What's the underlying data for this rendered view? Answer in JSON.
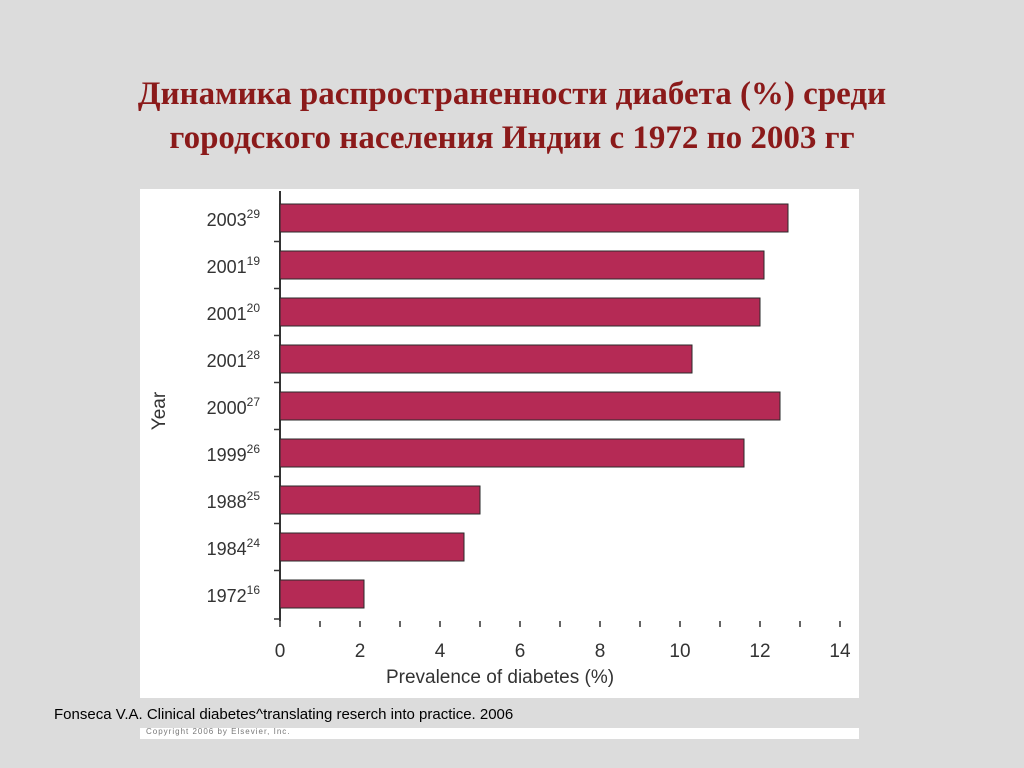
{
  "slide": {
    "title_line1": "Динамика распространенности диабета (%) среди",
    "title_line2": "городского населения Индии с 1972 по 2003 гг",
    "citation": "Fonseca V.A. Clinical diabetes^translating reserch into practice. 2006",
    "copyright_fragment": "Copyright 2006 by Elsevier, Inc."
  },
  "colors": {
    "title": "#8b1a1a",
    "bar_fill": "#b52a55",
    "background": "#dcdcdc",
    "panel": "#ffffff"
  },
  "chart_data": {
    "type": "bar",
    "orientation": "horizontal",
    "xlabel": "Prevalence of diabetes (%)",
    "ylabel": "Year",
    "xlim": [
      0,
      14
    ],
    "xticks": [
      0,
      2,
      4,
      6,
      8,
      10,
      12,
      14
    ],
    "grid": false,
    "categories": [
      {
        "year": "2003",
        "ref": "29"
      },
      {
        "year": "2001",
        "ref": "19"
      },
      {
        "year": "2001",
        "ref": "20"
      },
      {
        "year": "2001",
        "ref": "28"
      },
      {
        "year": "2000",
        "ref": "27"
      },
      {
        "year": "1999",
        "ref": "26"
      },
      {
        "year": "1988",
        "ref": "25"
      },
      {
        "year": "1984",
        "ref": "24"
      },
      {
        "year": "1972",
        "ref": "16"
      }
    ],
    "values": [
      12.7,
      12.1,
      12.0,
      10.3,
      12.5,
      11.6,
      5.0,
      4.6,
      2.1
    ]
  }
}
